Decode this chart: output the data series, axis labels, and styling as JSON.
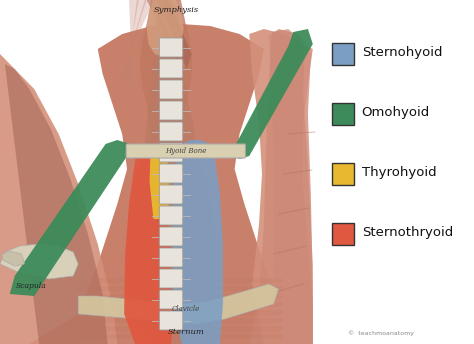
{
  "legend_entries": [
    {
      "label": "Sternohyoid",
      "color": "#7B9EC4"
    },
    {
      "label": "Omohyoid",
      "color": "#3D8B5A"
    },
    {
      "label": "Thyrohyoid",
      "color": "#E8B830"
    },
    {
      "label": "Sternothryoid",
      "color": "#E05840"
    }
  ],
  "bg_color": "#FFFFFF",
  "anatomy_colors": {
    "skin_base": "#C8806A",
    "muscle_pink": "#D4907A",
    "muscle_dark": "#A06050",
    "sternohyoid": "#7B9EC4",
    "omohyoid": "#3D8B5A",
    "thyrohyoid": "#E8B830",
    "sternothyroid": "#E05840",
    "bone_white": "#E8E4DC",
    "clavicle": "#D4C8A0",
    "scapula": "#D8D0B8"
  },
  "labels": {
    "symphysis": "Symphysis",
    "hyoid_bone": "Hyoid Bone",
    "scapula": "Scapula",
    "sternum": "Sternum",
    "clavicle": "Clavicle",
    "copyright": "©  teachmoanatomy"
  }
}
